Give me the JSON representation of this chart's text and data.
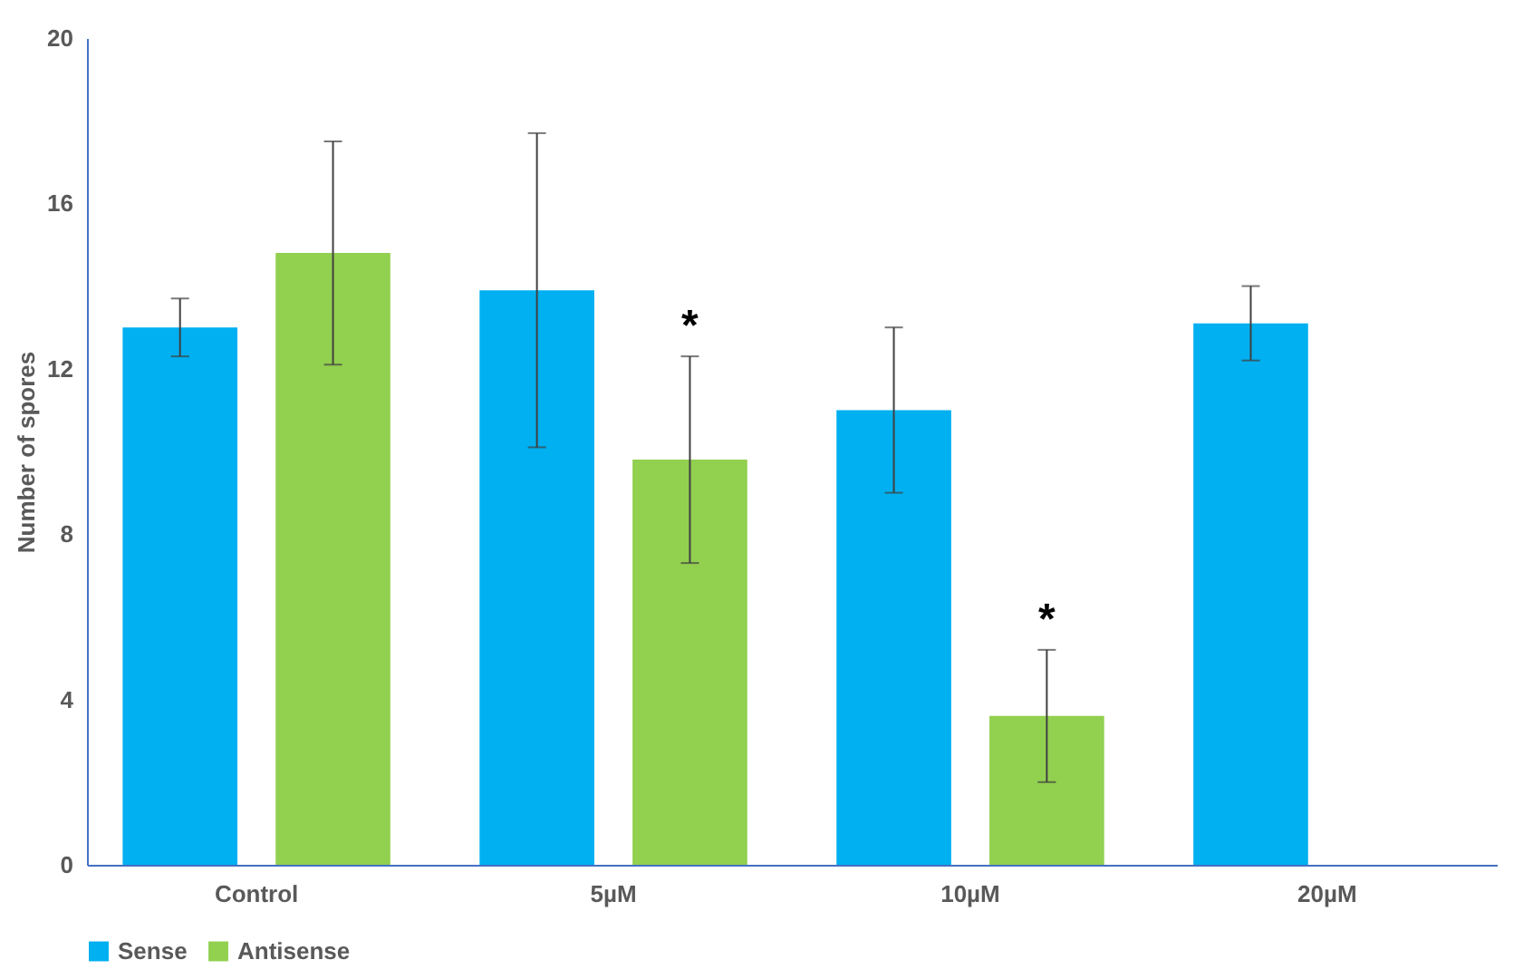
{
  "chart_data": {
    "type": "bar",
    "ylabel": "Number of spores",
    "categories": [
      "Control",
      "5µM",
      "10µM",
      "20µM"
    ],
    "series": [
      {
        "name": "Sense",
        "color": "#00b0f0",
        "values": [
          13.0,
          13.9,
          11.0,
          13.1
        ],
        "errors": [
          0.7,
          3.8,
          2.0,
          0.9
        ]
      },
      {
        "name": "Antisense",
        "color": "#92d050",
        "values": [
          14.8,
          9.8,
          3.6,
          null
        ],
        "errors": [
          2.7,
          2.5,
          1.6,
          null
        ],
        "value_labels": [
          null,
          "*",
          "*",
          null
        ]
      }
    ],
    "ylim": [
      0,
      20
    ],
    "yticks": [
      0,
      4,
      8,
      12,
      16,
      20
    ],
    "grid": false,
    "legend": "bottom"
  }
}
